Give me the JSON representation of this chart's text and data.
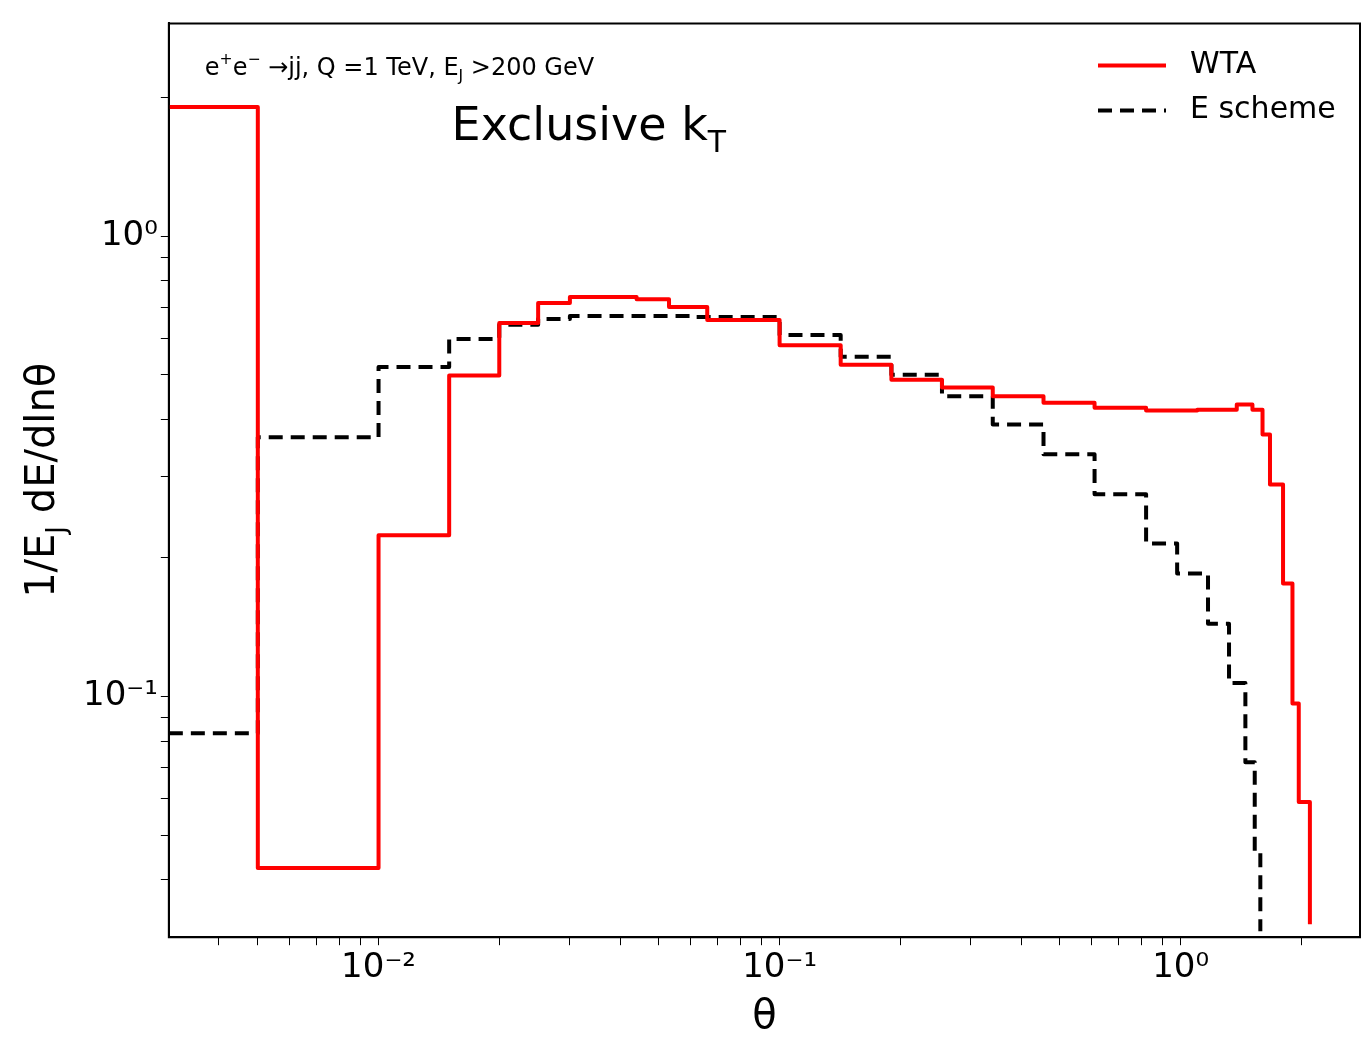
{
  "chart_data": {
    "type": "step",
    "title": "Exclusive k$_{T}$",
    "annotations": [
      "e$^{+}$e$^{−}$ →jj, Q =1 TeV, E$_{J}$ >200 GeV"
    ],
    "xlabel": "θ",
    "ylabel": "1/E$_{J}$ dE/dlnθ",
    "log": "xy",
    "legend": "top right",
    "grid": false,
    "xlim": [
      0.003,
      2.8
    ],
    "ylim": [
      0.03,
      2.9
    ],
    "xticks": [
      {
        "value": 0.004,
        "label": null
      },
      {
        "value": 0.005,
        "label": null
      },
      {
        "value": 0.006,
        "label": null
      },
      {
        "value": 0.007,
        "label": null
      },
      {
        "value": 0.008,
        "label": null
      },
      {
        "value": 0.009,
        "label": null
      },
      {
        "value": 0.01,
        "label": "10⁻²"
      },
      {
        "value": 0.02,
        "label": null
      },
      {
        "value": 0.03,
        "label": null
      },
      {
        "value": 0.04,
        "label": null
      },
      {
        "value": 0.05,
        "label": null
      },
      {
        "value": 0.06,
        "label": null
      },
      {
        "value": 0.07,
        "label": null
      },
      {
        "value": 0.08,
        "label": null
      },
      {
        "value": 0.09,
        "label": null
      },
      {
        "value": 0.1,
        "label": "10⁻¹"
      },
      {
        "value": 0.2,
        "label": null
      },
      {
        "value": 0.3,
        "label": null
      },
      {
        "value": 0.4,
        "label": null
      },
      {
        "value": 0.5,
        "label": null
      },
      {
        "value": 0.6,
        "label": null
      },
      {
        "value": 0.7,
        "label": null
      },
      {
        "value": 0.8,
        "label": null
      },
      {
        "value": 0.9,
        "label": null
      },
      {
        "value": 1,
        "label": "10⁰"
      },
      {
        "value": 2,
        "label": null
      }
    ],
    "yticks": [
      {
        "value": 0.04,
        "label": null
      },
      {
        "value": 0.05,
        "label": null
      },
      {
        "value": 0.06,
        "label": null
      },
      {
        "value": 0.07,
        "label": null
      },
      {
        "value": 0.08,
        "label": null
      },
      {
        "value": 0.09,
        "label": null
      },
      {
        "value": 0.1,
        "label": "10⁻¹"
      },
      {
        "value": 0.2,
        "label": null
      },
      {
        "value": 0.3,
        "label": null
      },
      {
        "value": 0.4,
        "label": null
      },
      {
        "value": 0.5,
        "label": null
      },
      {
        "value": 0.6,
        "label": null
      },
      {
        "value": 0.7,
        "label": null
      },
      {
        "value": 0.8,
        "label": null
      },
      {
        "value": 0.9,
        "label": null
      },
      {
        "value": 1,
        "label": "10⁰"
      },
      {
        "value": 2,
        "label": null
      }
    ],
    "series": [
      {
        "name": "WTA",
        "color": "#ff0000",
        "line_style": "solid",
        "x": [
          0.003,
          0.005,
          0.01,
          0.015,
          0.02,
          0.025,
          0.03,
          0.044,
          0.053,
          0.066,
          0.1,
          0.142,
          0.19,
          0.254,
          0.34,
          0.455,
          0.61,
          0.82,
          1.1,
          1.38,
          1.51,
          1.6,
          1.67,
          1.8,
          1.9,
          1.97,
          2.1
        ],
        "values": [
          1.91,
          0.0424,
          0.224,
          0.498,
          0.648,
          0.716,
          0.738,
          0.73,
          0.702,
          0.658,
          0.58,
          0.526,
          0.488,
          0.469,
          0.449,
          0.435,
          0.424,
          0.418,
          0.42,
          0.431,
          0.42,
          0.371,
          0.289,
          0.176,
          0.0966,
          0.059,
          0.032
        ]
      },
      {
        "name": "E scheme",
        "color": "#000000",
        "line_style": "dashed",
        "x": [
          0.003,
          0.005,
          0.01,
          0.015,
          0.02,
          0.025,
          0.03,
          0.06,
          0.1,
          0.142,
          0.19,
          0.254,
          0.34,
          0.455,
          0.61,
          0.82,
          0.98,
          1.17,
          1.32,
          1.45,
          1.53,
          1.58
        ],
        "values": [
          0.0832,
          0.366,
          0.52,
          0.598,
          0.642,
          0.661,
          0.671,
          0.668,
          0.61,
          0.547,
          0.5,
          0.449,
          0.39,
          0.336,
          0.275,
          0.215,
          0.185,
          0.144,
          0.107,
          0.072,
          0.0457,
          0.0309
        ]
      }
    ]
  }
}
